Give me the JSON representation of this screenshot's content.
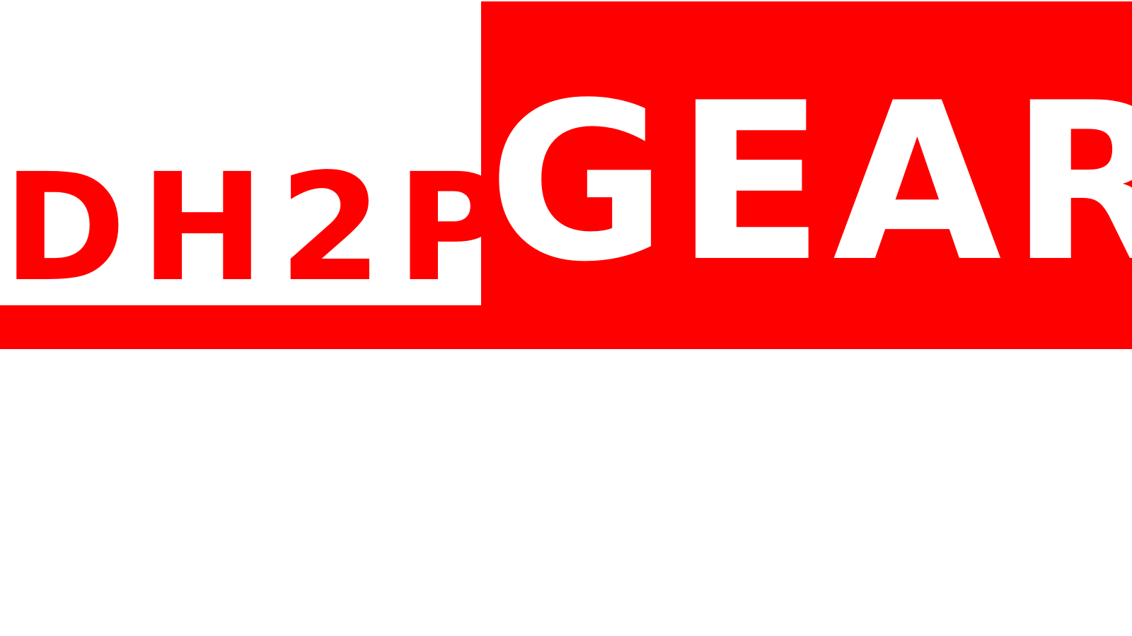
{
  "logo": {
    "left_text": "DH2P",
    "right_text": "GEAR",
    "colors": {
      "brand_red": "#ff0000",
      "background": "#ffffff",
      "right_text": "#ffffff"
    }
  }
}
